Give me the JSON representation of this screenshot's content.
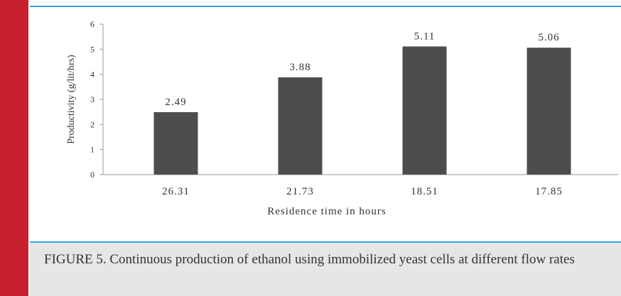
{
  "chart_data": {
    "type": "bar",
    "y_label": "Productivity (g/lit/hrs)",
    "x_label": "Residence time in hours",
    "categories": [
      "26.31",
      "21.73",
      "18.51",
      "17.85"
    ],
    "values": [
      2.49,
      3.88,
      5.11,
      5.06
    ],
    "color": "#4d4d4d",
    "ylim": [
      0,
      6
    ],
    "yticks": [
      0,
      1,
      2,
      3,
      4,
      5,
      6
    ]
  },
  "caption": "FIGURE 5. Continuous production of ethanol using immobilized yeast cells at different flow rates"
}
